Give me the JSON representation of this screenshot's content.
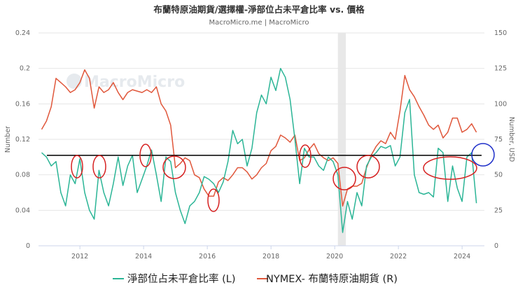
{
  "chart_data": {
    "type": "line",
    "title": "布蘭特原油期貨/選擇權-淨部位占未平倉比率 vs. 價格",
    "subtitle": "MacroMicro.me | MacroMicro",
    "watermark": "MacroMicro",
    "y_left": {
      "label": "Number",
      "ticks": [
        "0",
        "0.04",
        "0.08",
        "0.12",
        "0.16",
        "0.2",
        "0.24"
      ],
      "range": [
        0,
        0.24
      ]
    },
    "y_right": {
      "label": "Number, USD",
      "ticks": [
        "0",
        "25",
        "50",
        "75",
        "100",
        "125",
        "150"
      ],
      "range": [
        0,
        150
      ]
    },
    "x": {
      "ticks": [
        "2012",
        "2014",
        "2016",
        "2018",
        "2020",
        "2022",
        "2024"
      ],
      "range": [
        2010.7,
        2024.7
      ]
    },
    "shaded_band": [
      2020.1,
      2020.35
    ],
    "reference_line_left": 0.102,
    "legend": [
      {
        "name": "淨部位占未平倉比率 (L)",
        "color": "#2bb596"
      },
      {
        "name": "NYMEX- 布蘭特原油期貨 (R)",
        "color": "#e0573b"
      }
    ],
    "series": [
      {
        "name": "淨部位占未平倉比率 (L)",
        "axis": "left",
        "color": "#2bb596",
        "x": [
          2010.8,
          2010.95,
          2011.1,
          2011.25,
          2011.4,
          2011.55,
          2011.7,
          2011.85,
          2012.0,
          2012.15,
          2012.3,
          2012.45,
          2012.6,
          2012.75,
          2012.9,
          2013.05,
          2013.2,
          2013.35,
          2013.5,
          2013.65,
          2013.8,
          2013.95,
          2014.1,
          2014.25,
          2014.4,
          2014.55,
          2014.7,
          2014.85,
          2015.0,
          2015.15,
          2015.3,
          2015.45,
          2015.6,
          2015.75,
          2015.9,
          2016.05,
          2016.2,
          2016.35,
          2016.5,
          2016.65,
          2016.8,
          2016.95,
          2017.1,
          2017.25,
          2017.4,
          2017.55,
          2017.7,
          2017.85,
          2018.0,
          2018.15,
          2018.3,
          2018.45,
          2018.6,
          2018.75,
          2018.9,
          2019.05,
          2019.2,
          2019.35,
          2019.5,
          2019.65,
          2019.8,
          2019.95,
          2020.1,
          2020.25,
          2020.4,
          2020.55,
          2020.7,
          2020.85,
          2021.0,
          2021.15,
          2021.3,
          2021.45,
          2021.6,
          2021.75,
          2021.9,
          2022.05,
          2022.2,
          2022.35,
          2022.5,
          2022.65,
          2022.8,
          2022.95,
          2023.1,
          2023.25,
          2023.4,
          2023.55,
          2023.7,
          2023.85,
          2024.0,
          2024.15,
          2024.3,
          2024.45
        ],
        "y": [
          0.105,
          0.1,
          0.09,
          0.095,
          0.06,
          0.045,
          0.08,
          0.07,
          0.098,
          0.06,
          0.04,
          0.03,
          0.085,
          0.06,
          0.045,
          0.07,
          0.1,
          0.068,
          0.09,
          0.102,
          0.06,
          0.075,
          0.09,
          0.108,
          0.08,
          0.05,
          0.1,
          0.095,
          0.06,
          0.04,
          0.025,
          0.045,
          0.05,
          0.06,
          0.078,
          0.075,
          0.07,
          0.06,
          0.072,
          0.095,
          0.13,
          0.115,
          0.12,
          0.09,
          0.11,
          0.15,
          0.17,
          0.16,
          0.19,
          0.175,
          0.2,
          0.19,
          0.165,
          0.12,
          0.07,
          0.11,
          0.1,
          0.1,
          0.09,
          0.085,
          0.1,
          0.095,
          0.08,
          0.015,
          0.05,
          0.03,
          0.06,
          0.045,
          0.09,
          0.1,
          0.105,
          0.112,
          0.11,
          0.113,
          0.09,
          0.1,
          0.15,
          0.165,
          0.08,
          0.06,
          0.058,
          0.06,
          0.055,
          0.11,
          0.105,
          0.05,
          0.09,
          0.065,
          0.05,
          0.1,
          0.105,
          0.048
        ]
      },
      {
        "name": "NYMEX- 布蘭特原油期貨 (R)",
        "axis": "right",
        "color": "#e0573b",
        "x": [
          2010.8,
          2010.95,
          2011.1,
          2011.25,
          2011.4,
          2011.55,
          2011.7,
          2011.85,
          2012.0,
          2012.15,
          2012.3,
          2012.45,
          2012.6,
          2012.75,
          2012.9,
          2013.05,
          2013.2,
          2013.35,
          2013.5,
          2013.65,
          2013.8,
          2013.95,
          2014.1,
          2014.25,
          2014.4,
          2014.55,
          2014.7,
          2014.85,
          2015.0,
          2015.15,
          2015.3,
          2015.45,
          2015.6,
          2015.75,
          2015.9,
          2016.05,
          2016.2,
          2016.35,
          2016.5,
          2016.65,
          2016.8,
          2016.95,
          2017.1,
          2017.25,
          2017.4,
          2017.55,
          2017.7,
          2017.85,
          2018.0,
          2018.15,
          2018.3,
          2018.45,
          2018.6,
          2018.75,
          2018.9,
          2019.05,
          2019.2,
          2019.35,
          2019.5,
          2019.65,
          2019.8,
          2019.95,
          2020.1,
          2020.25,
          2020.4,
          2020.55,
          2020.7,
          2020.85,
          2021.0,
          2021.15,
          2021.3,
          2021.45,
          2021.6,
          2021.75,
          2021.9,
          2022.05,
          2022.2,
          2022.35,
          2022.5,
          2022.65,
          2022.8,
          2022.95,
          2023.1,
          2023.25,
          2023.4,
          2023.55,
          2023.7,
          2023.85,
          2024.0,
          2024.15,
          2024.3,
          2024.45
        ],
        "y": [
          82,
          88,
          98,
          118,
          115,
          112,
          108,
          110,
          115,
          124,
          118,
          97,
          112,
          108,
          110,
          115,
          108,
          103,
          108,
          110,
          109,
          108,
          110,
          108,
          112,
          100,
          95,
          85,
          55,
          58,
          62,
          60,
          50,
          48,
          40,
          35,
          35,
          45,
          48,
          46,
          50,
          55,
          55,
          52,
          47,
          50,
          55,
          58,
          67,
          70,
          78,
          76,
          73,
          78,
          60,
          62,
          68,
          72,
          65,
          62,
          60,
          62,
          58,
          28,
          40,
          42,
          42,
          44,
          55,
          64,
          70,
          74,
          72,
          80,
          75,
          95,
          120,
          110,
          105,
          98,
          92,
          85,
          82,
          85,
          76,
          80,
          90,
          90,
          80,
          82,
          86,
          80
        ]
      }
    ]
  }
}
